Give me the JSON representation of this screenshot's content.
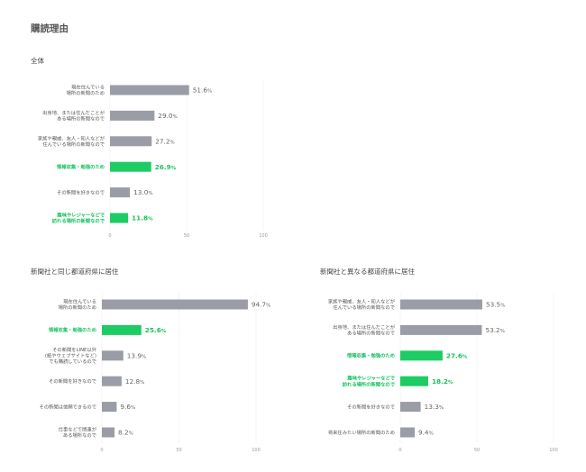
{
  "page": {
    "title": "購読理由"
  },
  "colors": {
    "highlight": "#1dcc63",
    "default": "#9a9ca6"
  },
  "chart_data": [
    {
      "type": "bar",
      "orientation": "horizontal",
      "title": "全体",
      "xlim": [
        0,
        100
      ],
      "ticks": [
        0,
        50,
        100
      ],
      "unit": "%",
      "categories": [
        "現在住んでいる\n場所の新聞のため",
        "出身地、または住んだことが\nある場所の新聞なので",
        "家族や親戚、友人・知人などが\n住んでいる場所の新聞なので",
        "情報収集・勉強のため",
        "その新聞を好きなので",
        "趣味やレジャーなどで\n訪れる場所の新聞なので"
      ],
      "values": [
        51.6,
        29.0,
        27.2,
        26.9,
        13.0,
        11.8
      ],
      "highlight": [
        false,
        false,
        false,
        true,
        false,
        true
      ]
    },
    {
      "type": "bar",
      "orientation": "horizontal",
      "title": "新聞社と同じ都道府県に居住",
      "xlim": [
        0,
        100
      ],
      "ticks": [
        0,
        50,
        100
      ],
      "unit": "%",
      "categories": [
        "現在住んでいる\n場所の新聞のため",
        "情報収集・勉強のため",
        "その新聞をLINE以外\n(紙やウェブサイトなど)\nでも購読しているので",
        "その新聞を好きなので",
        "その新聞は信頼できるので",
        "仕事などで関連が\nある場所なので"
      ],
      "values": [
        94.7,
        25.6,
        13.9,
        12.8,
        9.6,
        8.2
      ],
      "highlight": [
        false,
        true,
        false,
        false,
        false,
        false
      ]
    },
    {
      "type": "bar",
      "orientation": "horizontal",
      "title": "新聞社と異なる都道府県に居住",
      "xlim": [
        0,
        100
      ],
      "ticks": [
        0,
        50,
        100
      ],
      "unit": "%",
      "categories": [
        "家族や親戚、友人・知人などが\n住んでいる場所の新聞なので",
        "出身地、または住んだことが\nある場所の新聞なので",
        "情報収集・勉強のため",
        "趣味やレジャーなどで\n訪れる場所の新聞なので",
        "その新聞を好きなので",
        "将来住みたい場所の新聞のため"
      ],
      "values": [
        53.5,
        53.2,
        27.6,
        18.2,
        13.3,
        9.4
      ],
      "highlight": [
        false,
        false,
        true,
        true,
        false,
        false
      ]
    }
  ]
}
